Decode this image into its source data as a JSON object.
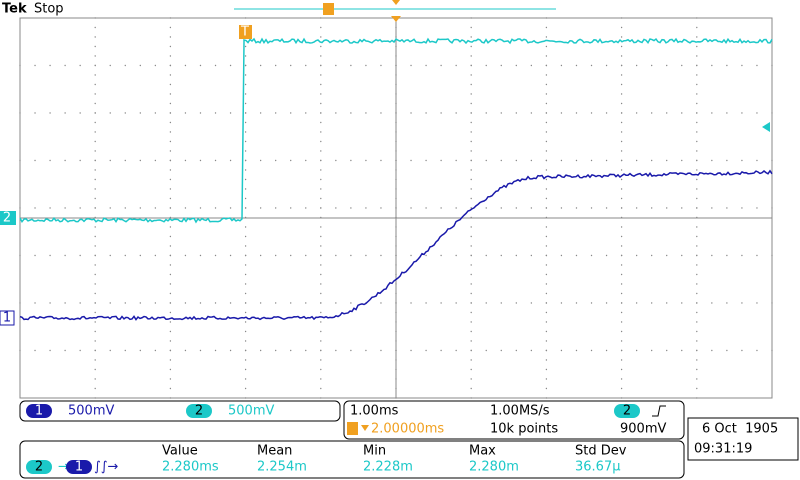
{
  "header": {
    "brand": "Tek",
    "status": "Stop"
  },
  "markers": {
    "ch1": "1",
    "ch2": "2",
    "trigger": "T"
  },
  "channels": [
    {
      "number": "1",
      "scale": "500mV"
    },
    {
      "number": "2",
      "scale": "500mV"
    }
  ],
  "timebase": {
    "scale": "1.00ms",
    "rate": "1.00MS/s",
    "position": "2.00000ms",
    "points": "10k points",
    "trigger_source": "2",
    "trigger_level": "900mV"
  },
  "datetime": {
    "date": "6 Oct  1905",
    "time": "09:31:19"
  },
  "measurement": {
    "from": "2",
    "to": "1",
    "headers": [
      "Value",
      "Mean",
      "Min",
      "Max",
      "Std Dev"
    ],
    "values": [
      "2.280ms",
      "2.254m",
      "2.228m",
      "2.280m",
      "36.67µ"
    ]
  }
}
